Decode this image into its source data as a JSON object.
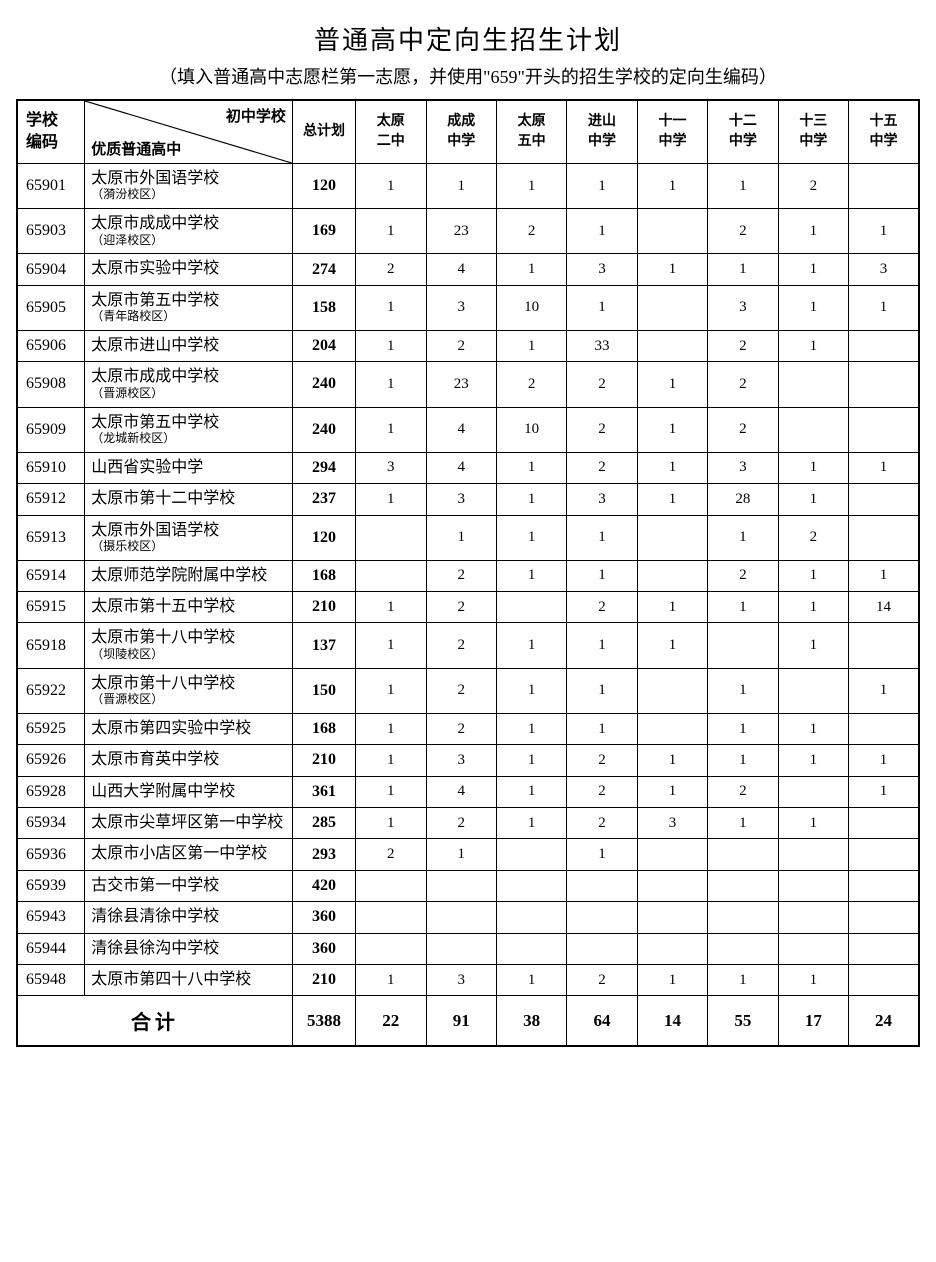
{
  "title": "普通高中定向生招生计划",
  "subtitle": "（填入普通高中志愿栏第一志愿，并使用\"659\"开头的招生学校的定向生编码）",
  "header": {
    "code": "学校\n编码",
    "diag_top": "初中学校",
    "diag_bottom": "优质普通高中",
    "total": "总计划",
    "cols": [
      "太原\n二中",
      "成成\n中学",
      "太原\n五中",
      "进山\n中学",
      "十一\n中学",
      "十二\n中学",
      "十三\n中学",
      "十五\n中学"
    ]
  },
  "rows": [
    {
      "code": "65901",
      "name": "太原市外国语学校",
      "sub": "（漪汾校区）",
      "total": "120",
      "v": [
        "1",
        "1",
        "1",
        "1",
        "1",
        "1",
        "2",
        ""
      ]
    },
    {
      "code": "65903",
      "name": "太原市成成中学校",
      "sub": "（迎泽校区）",
      "total": "169",
      "v": [
        "1",
        "23",
        "2",
        "1",
        "",
        "2",
        "1",
        "1"
      ]
    },
    {
      "code": "65904",
      "name": "太原市实验中学校",
      "sub": "",
      "total": "274",
      "v": [
        "2",
        "4",
        "1",
        "3",
        "1",
        "1",
        "1",
        "3"
      ]
    },
    {
      "code": "65905",
      "name": "太原市第五中学校",
      "sub": "（青年路校区）",
      "total": "158",
      "v": [
        "1",
        "3",
        "10",
        "1",
        "",
        "3",
        "1",
        "1"
      ]
    },
    {
      "code": "65906",
      "name": "太原市进山中学校",
      "sub": "",
      "total": "204",
      "v": [
        "1",
        "2",
        "1",
        "33",
        "",
        "2",
        "1",
        ""
      ]
    },
    {
      "code": "65908",
      "name": "太原市成成中学校",
      "sub": "（晋源校区）",
      "total": "240",
      "v": [
        "1",
        "23",
        "2",
        "2",
        "1",
        "2",
        "",
        ""
      ]
    },
    {
      "code": "65909",
      "name": "太原市第五中学校",
      "sub": "（龙城新校区）",
      "total": "240",
      "v": [
        "1",
        "4",
        "10",
        "2",
        "1",
        "2",
        "",
        ""
      ]
    },
    {
      "code": "65910",
      "name": "山西省实验中学",
      "sub": "",
      "total": "294",
      "v": [
        "3",
        "4",
        "1",
        "2",
        "1",
        "3",
        "1",
        "1"
      ]
    },
    {
      "code": "65912",
      "name": "太原市第十二中学校",
      "sub": "",
      "total": "237",
      "v": [
        "1",
        "3",
        "1",
        "3",
        "1",
        "28",
        "1",
        ""
      ]
    },
    {
      "code": "65913",
      "name": "太原市外国语学校",
      "sub": "（摄乐校区）",
      "total": "120",
      "v": [
        "",
        "1",
        "1",
        "1",
        "",
        "1",
        "2",
        ""
      ]
    },
    {
      "code": "65914",
      "name": "太原师范学院附属中学校",
      "sub": "",
      "total": "168",
      "v": [
        "",
        "2",
        "1",
        "1",
        "",
        "2",
        "1",
        "1"
      ]
    },
    {
      "code": "65915",
      "name": "太原市第十五中学校",
      "sub": "",
      "total": "210",
      "v": [
        "1",
        "2",
        "",
        "2",
        "1",
        "1",
        "1",
        "14"
      ]
    },
    {
      "code": "65918",
      "name": "太原市第十八中学校",
      "sub": "（坝陵校区）",
      "total": "137",
      "v": [
        "1",
        "2",
        "1",
        "1",
        "1",
        "",
        "1",
        ""
      ]
    },
    {
      "code": "65922",
      "name": "太原市第十八中学校",
      "sub": "（晋源校区）",
      "total": "150",
      "v": [
        "1",
        "2",
        "1",
        "1",
        "",
        "1",
        "",
        "1"
      ]
    },
    {
      "code": "65925",
      "name": "太原市第四实验中学校",
      "sub": "",
      "total": "168",
      "v": [
        "1",
        "2",
        "1",
        "1",
        "",
        "1",
        "1",
        ""
      ]
    },
    {
      "code": "65926",
      "name": "太原市育英中学校",
      "sub": "",
      "total": "210",
      "v": [
        "1",
        "3",
        "1",
        "2",
        "1",
        "1",
        "1",
        "1"
      ]
    },
    {
      "code": "65928",
      "name": "山西大学附属中学校",
      "sub": "",
      "total": "361",
      "v": [
        "1",
        "4",
        "1",
        "2",
        "1",
        "2",
        "",
        "1"
      ]
    },
    {
      "code": "65934",
      "name": "太原市尖草坪区第一中学校",
      "sub": "",
      "total": "285",
      "v": [
        "1",
        "2",
        "1",
        "2",
        "3",
        "1",
        "1",
        ""
      ]
    },
    {
      "code": "65936",
      "name": "太原市小店区第一中学校",
      "sub": "",
      "total": "293",
      "v": [
        "2",
        "1",
        "",
        "1",
        "",
        "",
        "",
        ""
      ]
    },
    {
      "code": "65939",
      "name": "古交市第一中学校",
      "sub": "",
      "total": "420",
      "v": [
        "",
        "",
        "",
        "",
        "",
        "",
        "",
        ""
      ]
    },
    {
      "code": "65943",
      "name": "清徐县清徐中学校",
      "sub": "",
      "total": "360",
      "v": [
        "",
        "",
        "",
        "",
        "",
        "",
        "",
        ""
      ]
    },
    {
      "code": "65944",
      "name": "清徐县徐沟中学校",
      "sub": "",
      "total": "360",
      "v": [
        "",
        "",
        "",
        "",
        "",
        "",
        "",
        ""
      ]
    },
    {
      "code": "65948",
      "name": "太原市第四十八中学校",
      "sub": "",
      "total": "210",
      "v": [
        "1",
        "3",
        "1",
        "2",
        "1",
        "1",
        "1",
        ""
      ]
    }
  ],
  "sum": {
    "label": "合计",
    "total": "5388",
    "v": [
      "22",
      "91",
      "38",
      "64",
      "14",
      "55",
      "17",
      "24"
    ]
  },
  "style": {
    "border_color": "#000000",
    "background": "#ffffff",
    "title_fontsize": 26,
    "subtitle_fontsize": 18,
    "cell_fontsize": 15,
    "bold_weight": "bold"
  }
}
